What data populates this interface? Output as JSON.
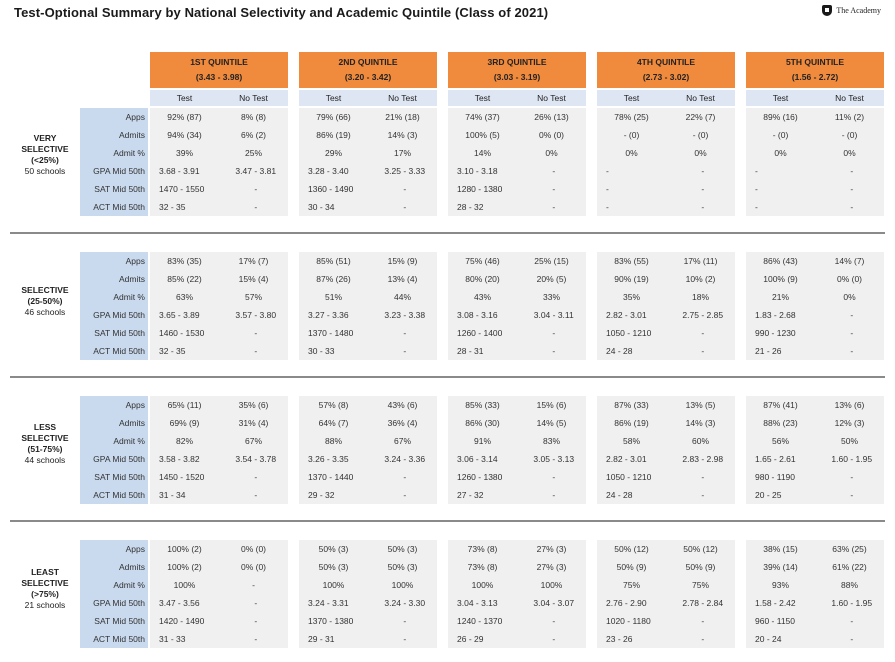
{
  "title": "Test-Optional Summary by National Selectivity and Academic Quintile (Class of 2021)",
  "logo_text": "The Academy",
  "quintiles": [
    {
      "name": "1ST QUINTILE",
      "range": "(3.43 - 3.98)"
    },
    {
      "name": "2ND QUINTILE",
      "range": "(3.20 - 3.42)"
    },
    {
      "name": "3RD QUINTILE",
      "range": "(3.03 - 3.19)"
    },
    {
      "name": "4TH QUINTILE",
      "range": "(2.73 - 3.02)"
    },
    {
      "name": "5TH QUINTILE",
      "range": "(1.56 - 2.72)"
    }
  ],
  "sub_headers": [
    "Test",
    "No Test"
  ],
  "row_labels": [
    "Apps",
    "Admits",
    "Admit %",
    "GPA Mid 50th",
    "SAT Mid 50th",
    "ACT Mid 50th"
  ],
  "sections": [
    {
      "name_lines": [
        "VERY",
        "SELECTIVE",
        "(<25%)"
      ],
      "count": "50 schools",
      "quintiles": [
        {
          "test": [
            "92% (87)",
            "94% (34)",
            "39%",
            "3.68 - 3.91",
            "1470 - 1550",
            "32 - 35"
          ],
          "notest": [
            "8% (8)",
            "6% (2)",
            "25%",
            "3.47 - 3.81",
            "-",
            "-"
          ]
        },
        {
          "test": [
            "79% (66)",
            "86% (19)",
            "29%",
            "3.28 - 3.40",
            "1360 - 1490",
            "30 - 34"
          ],
          "notest": [
            "21% (18)",
            "14% (3)",
            "17%",
            "3.25 - 3.33",
            "-",
            "-"
          ]
        },
        {
          "test": [
            "74% (37)",
            "100% (5)",
            "14%",
            "3.10 - 3.18",
            "1280 - 1380",
            "28 - 32"
          ],
          "notest": [
            "26% (13)",
            "0% (0)",
            "0%",
            "-",
            "-",
            "-"
          ]
        },
        {
          "test": [
            "78% (25)",
            "- (0)",
            "0%",
            "-",
            "-",
            "-"
          ],
          "notest": [
            "22% (7)",
            "- (0)",
            "0%",
            "-",
            "-",
            "-"
          ]
        },
        {
          "test": [
            "89% (16)",
            "- (0)",
            "0%",
            "-",
            "-",
            "-"
          ],
          "notest": [
            "11% (2)",
            "- (0)",
            "0%",
            "-",
            "-",
            "-"
          ]
        }
      ]
    },
    {
      "name_lines": [
        "SELECTIVE",
        "(25-50%)"
      ],
      "count": "46 schools",
      "quintiles": [
        {
          "test": [
            "83% (35)",
            "85% (22)",
            "63%",
            "3.65 - 3.89",
            "1460 - 1530",
            "32 - 35"
          ],
          "notest": [
            "17% (7)",
            "15% (4)",
            "57%",
            "3.57 - 3.80",
            "-",
            "-"
          ]
        },
        {
          "test": [
            "85% (51)",
            "87% (26)",
            "51%",
            "3.27 - 3.36",
            "1370 - 1480",
            "30 - 33"
          ],
          "notest": [
            "15% (9)",
            "13% (4)",
            "44%",
            "3.23 - 3.38",
            "-",
            "-"
          ]
        },
        {
          "test": [
            "75% (46)",
            "80% (20)",
            "43%",
            "3.08 - 3.16",
            "1260 - 1400",
            "28 - 31"
          ],
          "notest": [
            "25% (15)",
            "20% (5)",
            "33%",
            "3.04 - 3.11",
            "-",
            "-"
          ]
        },
        {
          "test": [
            "83% (55)",
            "90% (19)",
            "35%",
            "2.82 - 3.01",
            "1050 - 1210",
            "24 - 28"
          ],
          "notest": [
            "17% (11)",
            "10% (2)",
            "18%",
            "2.75 - 2.85",
            "-",
            "-"
          ]
        },
        {
          "test": [
            "86% (43)",
            "100% (9)",
            "21%",
            "1.83 - 2.68",
            "990 - 1230",
            "21 - 26"
          ],
          "notest": [
            "14% (7)",
            "0% (0)",
            "0%",
            "-",
            "-",
            "-"
          ]
        }
      ]
    },
    {
      "name_lines": [
        "LESS",
        "SELECTIVE",
        "(51-75%)"
      ],
      "count": "44 schools",
      "quintiles": [
        {
          "test": [
            "65% (11)",
            "69% (9)",
            "82%",
            "3.58 - 3.82",
            "1450 - 1520",
            "31 - 34"
          ],
          "notest": [
            "35% (6)",
            "31% (4)",
            "67%",
            "3.54 - 3.78",
            "-",
            "-"
          ]
        },
        {
          "test": [
            "57% (8)",
            "64% (7)",
            "88%",
            "3.26 - 3.35",
            "1370 - 1440",
            "29 - 32"
          ],
          "notest": [
            "43% (6)",
            "36% (4)",
            "67%",
            "3.24 - 3.36",
            "-",
            "-"
          ]
        },
        {
          "test": [
            "85% (33)",
            "86% (30)",
            "91%",
            "3.06 - 3.14",
            "1260 - 1380",
            "27 - 32"
          ],
          "notest": [
            "15% (6)",
            "14% (5)",
            "83%",
            "3.05 - 3.13",
            "-",
            "-"
          ]
        },
        {
          "test": [
            "87% (33)",
            "86% (19)",
            "58%",
            "2.82 - 3.01",
            "1050 - 1210",
            "24 - 28"
          ],
          "notest": [
            "13% (5)",
            "14% (3)",
            "60%",
            "2.83 - 2.98",
            "-",
            "-"
          ]
        },
        {
          "test": [
            "87% (41)",
            "88% (23)",
            "56%",
            "1.65 - 2.61",
            "980 - 1190",
            "20 - 25"
          ],
          "notest": [
            "13% (6)",
            "12% (3)",
            "50%",
            "1.60 - 1.95",
            "-",
            "-"
          ]
        }
      ]
    },
    {
      "name_lines": [
        "LEAST",
        "SELECTIVE",
        "(>75%)"
      ],
      "count": "21 schools",
      "quintiles": [
        {
          "test": [
            "100% (2)",
            "100% (2)",
            "100%",
            "3.47 - 3.56",
            "1420 - 1490",
            "31 - 33"
          ],
          "notest": [
            "0% (0)",
            "0% (0)",
            "-",
            "-",
            "-",
            "-"
          ]
        },
        {
          "test": [
            "50% (3)",
            "50% (3)",
            "100%",
            "3.24 - 3.31",
            "1370 - 1380",
            "29 - 31"
          ],
          "notest": [
            "50% (3)",
            "50% (3)",
            "100%",
            "3.24 - 3.30",
            "-",
            "-"
          ]
        },
        {
          "test": [
            "73% (8)",
            "73% (8)",
            "100%",
            "3.04 - 3.13",
            "1240 - 1370",
            "26 - 29"
          ],
          "notest": [
            "27% (3)",
            "27% (3)",
            "100%",
            "3.04 - 3.07",
            "-",
            "-"
          ]
        },
        {
          "test": [
            "50% (12)",
            "50% (9)",
            "75%",
            "2.76 - 2.90",
            "1020 - 1180",
            "23 - 26"
          ],
          "notest": [
            "50% (12)",
            "50% (9)",
            "75%",
            "2.78 - 2.84",
            "-",
            "-"
          ]
        },
        {
          "test": [
            "38% (15)",
            "39% (14)",
            "93%",
            "1.58 - 2.42",
            "960 - 1150",
            "20 - 24"
          ],
          "notest": [
            "63% (25)",
            "61% (22)",
            "88%",
            "1.60 - 1.95",
            "-",
            "-"
          ]
        }
      ]
    }
  ]
}
